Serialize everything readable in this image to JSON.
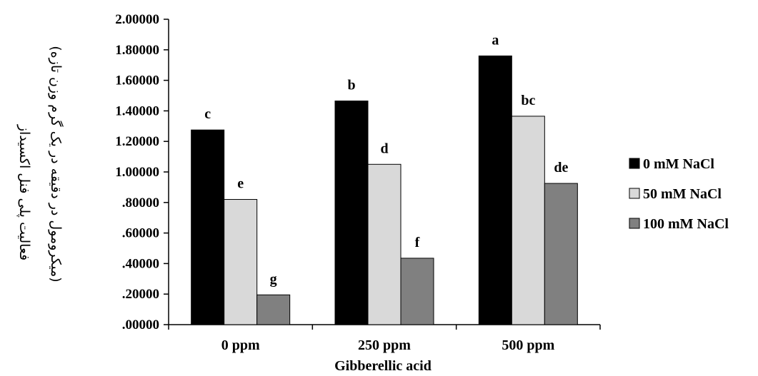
{
  "chart_data": {
    "type": "bar",
    "categories": [
      "0 ppm",
      "250 ppm",
      "500 ppm"
    ],
    "xlabel": "Gibberellic acid",
    "ylabel": [
      "فعالیت پلی فنل اکسیداز",
      "(میکرومول در دقیقه در یک گرم وزن تازه)"
    ],
    "ylim": [
      0,
      2.0
    ],
    "y_ticks": [
      ".00000",
      ".20000",
      ".40000",
      ".60000",
      ".80000",
      "1.00000",
      "1.20000",
      "1.40000",
      "1.60000",
      "1.80000",
      "2.00000"
    ],
    "grid": false,
    "legend_position": "right",
    "series": [
      {
        "name": "0 mM NaCl",
        "color": "#000000",
        "values": [
          1.275,
          1.465,
          1.76
        ],
        "labels": [
          "c",
          "b",
          "a"
        ]
      },
      {
        "name": "50 mM NaCl",
        "color": "#d9d9d9",
        "values": [
          0.82,
          1.05,
          1.365
        ],
        "labels": [
          "e",
          "d",
          "bc"
        ]
      },
      {
        "name": "100 mM NaCl",
        "color": "#808080",
        "values": [
          0.195,
          0.435,
          0.925
        ],
        "labels": [
          "g",
          "f",
          "de"
        ]
      }
    ]
  }
}
